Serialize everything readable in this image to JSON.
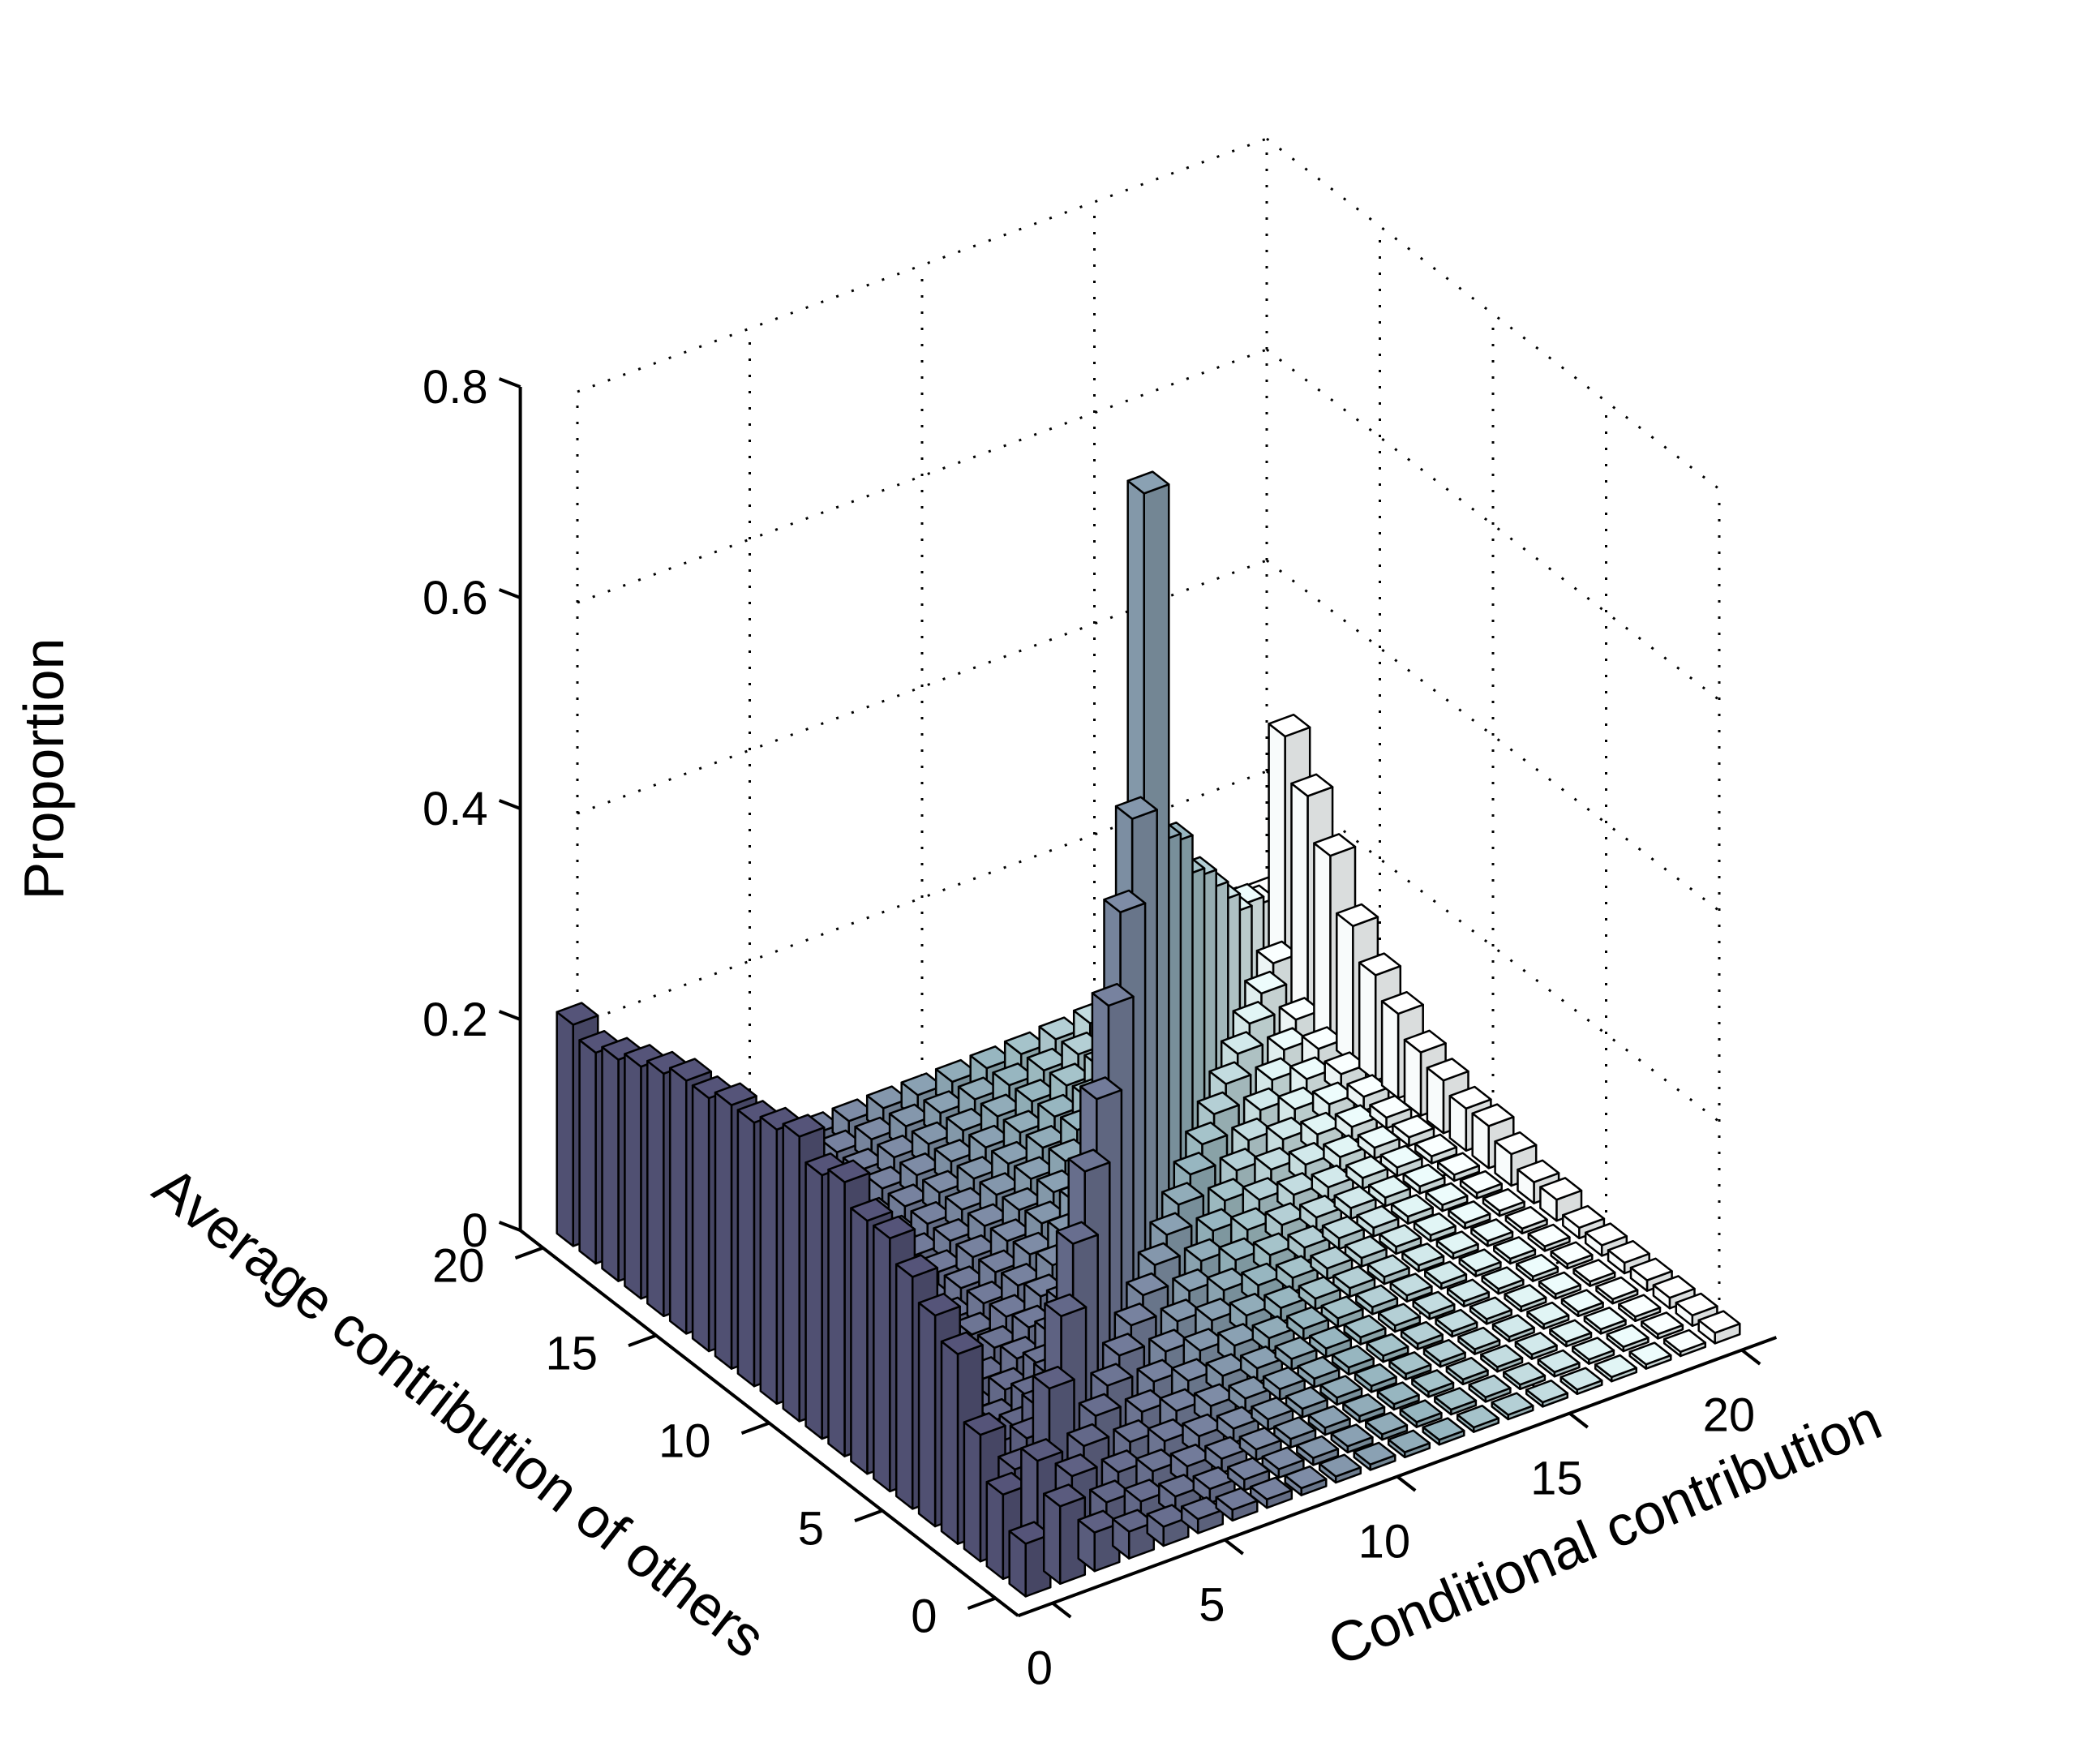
{
  "chart_data": {
    "type": "bar3d",
    "zlabel": "Proportion",
    "xlabel": "Conditional contribution",
    "ylabel": "Average contribution of others",
    "x_ticks": [
      "0",
      "5",
      "10",
      "15",
      "20"
    ],
    "y_ticks": [
      "0",
      "5",
      "10",
      "15",
      "20"
    ],
    "z_ticks": [
      "0",
      "0.2",
      "0.4",
      "0.6",
      "0.8"
    ],
    "x_range": [
      0,
      20
    ],
    "y_range": [
      0,
      20
    ],
    "z_range": [
      0,
      0.8
    ],
    "grid": true,
    "colormap": "bone",
    "spikes": {
      "x0_column": [
        0.05,
        0.08,
        0.12,
        0.18,
        0.2,
        0.22,
        0.24,
        0.24,
        0.26,
        0.25,
        0.27,
        0.26,
        0.25,
        0.25,
        0.24,
        0.24,
        0.23,
        0.22,
        0.21,
        0.2,
        0.21
      ],
      "diagonal": [
        0.05,
        0.1,
        0.14,
        0.18,
        0.22,
        0.26,
        0.3,
        0.36,
        0.42,
        0.48,
        0.76,
        0.4,
        0.37,
        0.31,
        0.28,
        0.24,
        0.2,
        0.16,
        0.14,
        0.11,
        0.09
      ],
      "x20_column": [
        0.01,
        0.01,
        0.01,
        0.01,
        0.01,
        0.01,
        0.01,
        0.02,
        0.02,
        0.03,
        0.04,
        0.04,
        0.05,
        0.06,
        0.08,
        0.1,
        0.13,
        0.18,
        0.22,
        0.26,
        0.38
      ]
    }
  }
}
